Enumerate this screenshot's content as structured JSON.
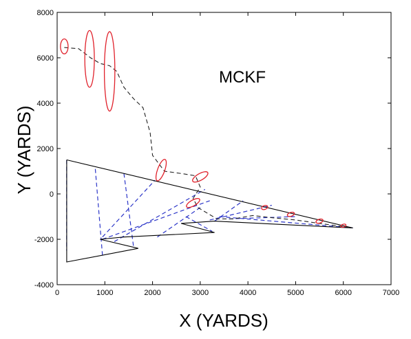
{
  "chart_data": {
    "type": "line",
    "xlabel": "X (YARDS)",
    "ylabel": "Y (YARDS)",
    "xlim": [
      0,
      7000
    ],
    "ylim": [
      -4000,
      8000
    ],
    "xticks": [
      0,
      1000,
      2000,
      3000,
      4000,
      5000,
      6000,
      7000
    ],
    "yticks": [
      -4000,
      -2000,
      0,
      2000,
      4000,
      6000,
      8000
    ],
    "grid": false,
    "annotation": "MCKF",
    "colors": {
      "geometry": "#000000",
      "bearing_lines": "#2b35c8",
      "track_estimate": "#222222",
      "uncertainty": "#e0202a"
    },
    "series": [
      {
        "style": "solid",
        "color": "#000000",
        "x": [
          200,
          6200,
          3300,
          2600,
          3300,
          1400,
          900,
          1700,
          200,
          200
        ],
        "y": [
          1500,
          -1500,
          -1200,
          -1300,
          -1700,
          -1900,
          -2000,
          -2400,
          -3000,
          1500
        ]
      },
      {
        "style": "dashed",
        "color": "#222222",
        "x": [
          150,
          450,
          700,
          900,
          1100,
          1250,
          1400,
          1600,
          1800,
          1950,
          2000,
          2250,
          2600,
          2900,
          3000,
          2850,
          2950,
          3350,
          3700,
          4100,
          4500,
          5000,
          5500,
          6200
        ],
        "y": [
          6450,
          6400,
          6000,
          5750,
          5650,
          5400,
          4700,
          4200,
          3800,
          2700,
          1700,
          1000,
          900,
          800,
          300,
          -200,
          -600,
          -1100,
          -1100,
          -950,
          -1050,
          -1150,
          -1300,
          -1500
        ]
      }
    ],
    "bearing_lines": [
      [
        [
          200,
          1500
        ],
        [
          200,
          -2500
        ]
      ],
      [
        [
          800,
          1100
        ],
        [
          950,
          -2700
        ]
      ],
      [
        [
          1400,
          900
        ],
        [
          1600,
          -2300
        ]
      ],
      [
        [
          950,
          -1900
        ],
        [
          2050,
          600
        ]
      ],
      [
        [
          1200,
          -2100
        ],
        [
          3100,
          200
        ]
      ],
      [
        [
          950,
          -2000
        ],
        [
          3200,
          -300
        ]
      ],
      [
        [
          2100,
          -1900
        ],
        [
          3000,
          -600
        ]
      ],
      [
        [
          2700,
          -1000
        ],
        [
          3250,
          -1650
        ]
      ],
      [
        [
          3300,
          -1200
        ],
        [
          3900,
          -300
        ]
      ],
      [
        [
          3200,
          -1150
        ],
        [
          4500,
          -500
        ]
      ],
      [
        [
          3400,
          -1000
        ],
        [
          6200,
          -1500
        ]
      ],
      [
        [
          3600,
          -1100
        ],
        [
          5000,
          -1000
        ]
      ]
    ],
    "ellipses": [
      {
        "cx": 150,
        "cy": 6500,
        "rx": 80,
        "ry": 330,
        "rot": 0
      },
      {
        "cx": 680,
        "cy": 5950,
        "rx": 100,
        "ry": 1250,
        "rot": 0
      },
      {
        "cx": 1100,
        "cy": 5400,
        "rx": 110,
        "ry": 1750,
        "rot": 0
      },
      {
        "cx": 2180,
        "cy": 1050,
        "rx": 75,
        "ry": 500,
        "rot": 20
      },
      {
        "cx": 3000,
        "cy": 750,
        "rx": 70,
        "ry": 380,
        "rot": 60
      },
      {
        "cx": 2850,
        "cy": -400,
        "rx": 60,
        "ry": 330,
        "rot": 60
      },
      {
        "cx": 4350,
        "cy": -600,
        "rx": 40,
        "ry": 140,
        "rot": 70
      },
      {
        "cx": 4900,
        "cy": -900,
        "rx": 40,
        "ry": 160,
        "rot": 72
      },
      {
        "cx": 5500,
        "cy": -1200,
        "rx": 40,
        "ry": 160,
        "rot": 72
      },
      {
        "cx": 6000,
        "cy": -1400,
        "rx": 30,
        "ry": 120,
        "rot": 72
      }
    ]
  }
}
